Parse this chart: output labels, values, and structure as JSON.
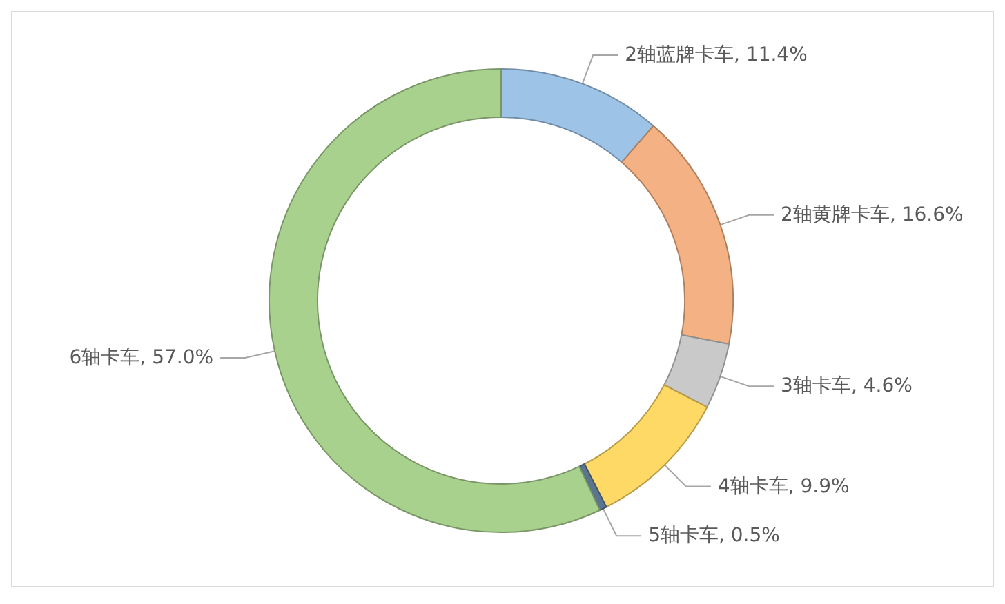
{
  "chart_data": {
    "type": "donut",
    "categories": [
      "2轴蓝牌卡车",
      "2轴黄牌卡车",
      "3轴卡车",
      "4轴卡车",
      "5轴卡车",
      "6轴卡车"
    ],
    "values": [
      11.4,
      16.6,
      4.6,
      9.9,
      0.5,
      57.0
    ],
    "colors": [
      "#9dc3e6",
      "#f4b183",
      "#c9c9c9",
      "#ffd966",
      "#5b7590",
      "#a9d18e"
    ],
    "value_labels": [
      "11.4%",
      "16.6%",
      "4.6%",
      "9.9%",
      "0.5%",
      "57.0%"
    ]
  }
}
